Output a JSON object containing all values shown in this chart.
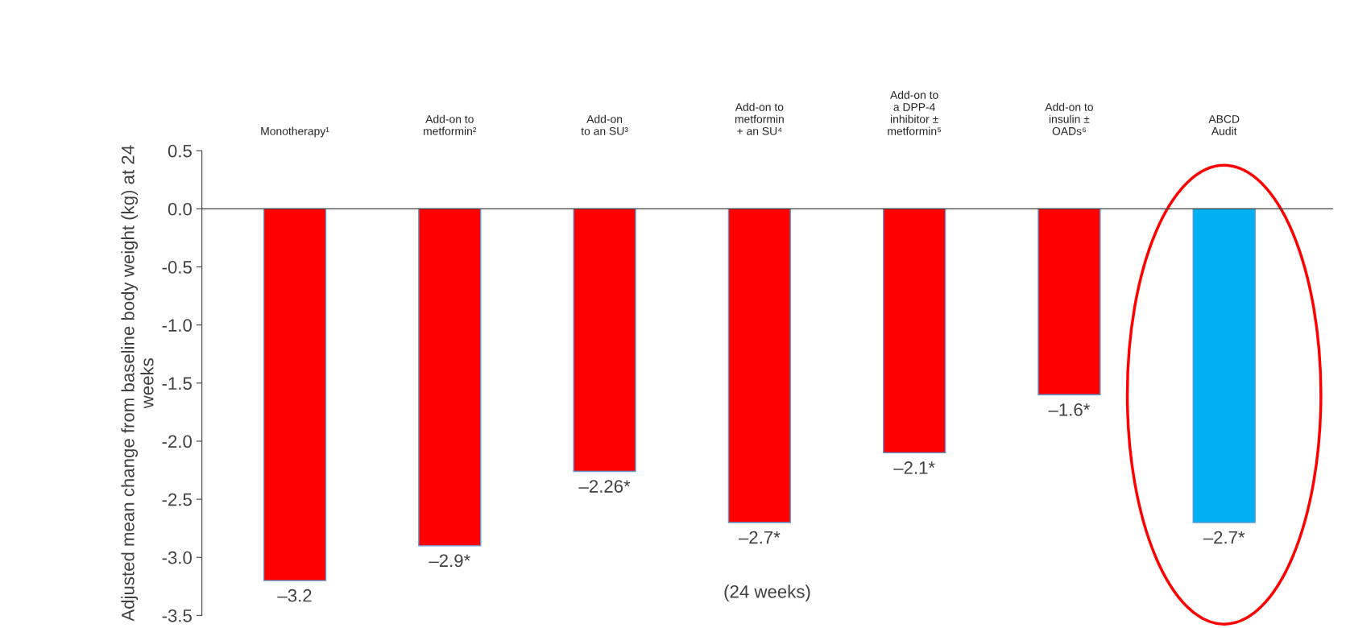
{
  "chart_data": {
    "type": "bar",
    "ylabel": "Adjusted mean change from baseline body weight (kg) at 24 weeks",
    "categories": [
      "Monotherapy¹",
      "Add-on to\nmetformin²",
      "Add-on\nto an SU³",
      "Add-on to\nmetformin\n+ an SU⁴",
      "Add-on to\na DPP-4\ninhibitor ±\nmetformin⁵",
      "Add-on to\ninsulin ±\nOADs⁶",
      "ABCD\nAudit"
    ],
    "values": [
      -3.2,
      -2.9,
      -2.26,
      -2.7,
      -2.1,
      -1.6,
      -2.7
    ],
    "colors": [
      "#ff0000",
      "#ff0000",
      "#ff0000",
      "#ff0000",
      "#ff0000",
      "#ff0000",
      "#00b0f0"
    ],
    "value_labels": [
      "–3.2",
      "–2.9*",
      "–2.26*",
      "–2.7*",
      "–2.1*",
      "–1.6*",
      "–2.7*"
    ],
    "ylim": [
      -3.5,
      0.5
    ],
    "yticks": [
      0.5,
      {
        "value": 0,
        "label": "0.0"
      },
      -0.5,
      {
        "value": -1,
        "label": "-1.0"
      },
      -1.5,
      {
        "value": -2,
        "label": "-2.0"
      },
      -2.5,
      {
        "value": -3,
        "label": "-3.0"
      },
      -3.5
    ],
    "annotations": [
      "(24 weeks)"
    ]
  }
}
